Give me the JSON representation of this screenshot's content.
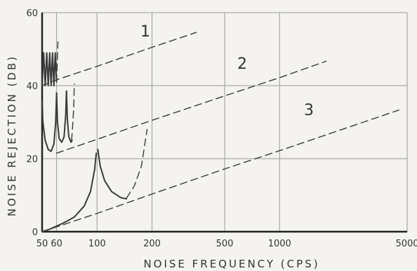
{
  "chart_data": {
    "type": "line",
    "xlabel": "NOISE FREQUENCY (CPS)",
    "ylabel": "NOISE REJECTION (DB)",
    "x_scale": "log",
    "xlim": [
      50,
      5000
    ],
    "ylim": [
      0,
      60
    ],
    "x_ticks": [
      50,
      60,
      100,
      200,
      500,
      1000,
      5000
    ],
    "x_tick_labels": [
      "50",
      "60",
      "100",
      "200",
      "500",
      "1000",
      "5000"
    ],
    "y_ticks": [
      0,
      20,
      40,
      60
    ],
    "y_tick_labels": [
      "0",
      "20",
      "40",
      "60"
    ],
    "grid": true,
    "colors": {
      "line": "#3a3a3a",
      "grid": "#9a9a9a",
      "background": "#f4f3ef"
    },
    "series": [
      {
        "name": "1",
        "style": "dashed",
        "points": [
          [
            50,
            40
          ],
          [
            60,
            41.6
          ],
          [
            100,
            45.3
          ],
          [
            200,
            50.5
          ],
          [
            350,
            54.6
          ]
        ]
      },
      {
        "name": "2",
        "style": "dashed",
        "points": [
          [
            60,
            21.5
          ],
          [
            100,
            25.3
          ],
          [
            200,
            30.5
          ],
          [
            500,
            37.2
          ],
          [
            1000,
            42.2
          ],
          [
            1800,
            46.7
          ]
        ]
      },
      {
        "name": "3",
        "style": "dashed",
        "points": [
          [
            50,
            0
          ],
          [
            100,
            5
          ],
          [
            200,
            10.3
          ],
          [
            500,
            17.2
          ],
          [
            1000,
            22.2
          ],
          [
            2000,
            27.3
          ],
          [
            4500,
            33.3
          ]
        ]
      },
      {
        "style": "solid",
        "points": [
          [
            50,
            0
          ],
          [
            55,
            0.7
          ],
          [
            65,
            2.3
          ],
          [
            75,
            4
          ],
          [
            85,
            7
          ],
          [
            92,
            11
          ],
          [
            97,
            17
          ],
          [
            99,
            21.5
          ]
        ]
      },
      {
        "style": "solid",
        "points": [
          [
            101,
            22.5
          ],
          [
            104,
            18
          ],
          [
            110,
            14
          ],
          [
            120,
            11
          ],
          [
            135,
            9.3
          ],
          [
            145,
            9
          ]
        ]
      },
      {
        "style": "dashed",
        "points": [
          [
            145,
            9.2
          ],
          [
            160,
            12.5
          ],
          [
            175,
            18
          ],
          [
            188,
            28
          ]
        ]
      },
      {
        "style": "solid",
        "points": [
          [
            50,
            35.5
          ],
          [
            50.5,
            30
          ],
          [
            52,
            25
          ],
          [
            54,
            22.5
          ],
          [
            56,
            22
          ],
          [
            58,
            24
          ],
          [
            59.3,
            30
          ],
          [
            60,
            38
          ]
        ]
      },
      {
        "style": "solid",
        "points": [
          [
            60,
            38
          ],
          [
            60.7,
            30
          ],
          [
            62,
            25.5
          ],
          [
            64,
            24.5
          ],
          [
            66,
            26
          ],
          [
            67.3,
            32
          ],
          [
            68,
            38.5
          ]
        ]
      },
      {
        "style": "solid",
        "points": [
          [
            68,
            38.5
          ],
          [
            68.7,
            31
          ],
          [
            70,
            26
          ],
          [
            72,
            24.5
          ],
          [
            73,
            25
          ]
        ]
      },
      {
        "style": "dashed",
        "points": [
          [
            72.5,
            25
          ],
          [
            73.5,
            29
          ],
          [
            74.5,
            34
          ],
          [
            75,
            40.5
          ]
        ]
      },
      {
        "style": "solid",
        "points": [
          [
            50,
            40
          ],
          [
            51,
            49
          ],
          [
            52,
            40
          ],
          [
            53,
            49
          ],
          [
            54,
            40
          ],
          [
            55,
            49
          ],
          [
            56,
            40
          ],
          [
            57,
            49
          ],
          [
            58,
            40
          ],
          [
            59,
            49
          ],
          [
            60,
            41
          ]
        ]
      },
      {
        "style": "dashed",
        "points": [
          [
            60,
            41
          ],
          [
            60.5,
            46
          ],
          [
            61,
            52
          ]
        ]
      }
    ]
  }
}
